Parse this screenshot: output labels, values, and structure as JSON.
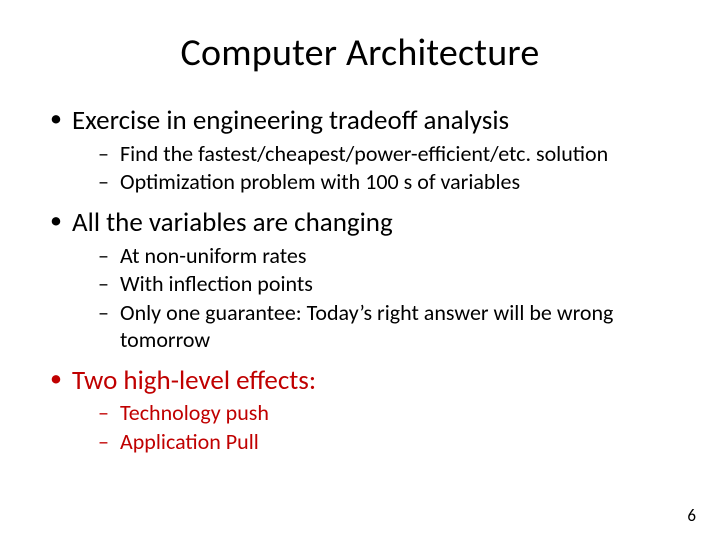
{
  "title": "Computer Architecture",
  "colors": {
    "text": "#000000",
    "accent": "#c00000",
    "background": "#ffffff"
  },
  "typography": {
    "title_fontsize": 38,
    "body_fontsize": 27,
    "sub_fontsize": 22,
    "pagenum_fontsize": 17,
    "font_family": "Calibri"
  },
  "bullets": [
    {
      "text": "Exercise in engineering tradeoff analysis",
      "color": "#000000",
      "sub": [
        {
          "text": "Find the fastest/cheapest/power-efficient/etc. solution",
          "color": "#000000"
        },
        {
          "text": "Optimization problem with 100 s of variables",
          "color": "#000000"
        }
      ]
    },
    {
      "text": "All the variables are changing",
      "color": "#000000",
      "sub": [
        {
          "text": "At non-uniform rates",
          "color": "#000000"
        },
        {
          "text": "With inflection points",
          "color": "#000000"
        },
        {
          "text": "Only one guarantee: Today’s right answer will be wrong tomorrow",
          "color": "#000000"
        }
      ]
    },
    {
      "text": "Two high-level effects:",
      "color": "#c00000",
      "sub": [
        {
          "text": "Technology push",
          "color": "#c00000"
        },
        {
          "text": "Application Pull",
          "color": "#c00000"
        }
      ]
    }
  ],
  "page_number": "6"
}
